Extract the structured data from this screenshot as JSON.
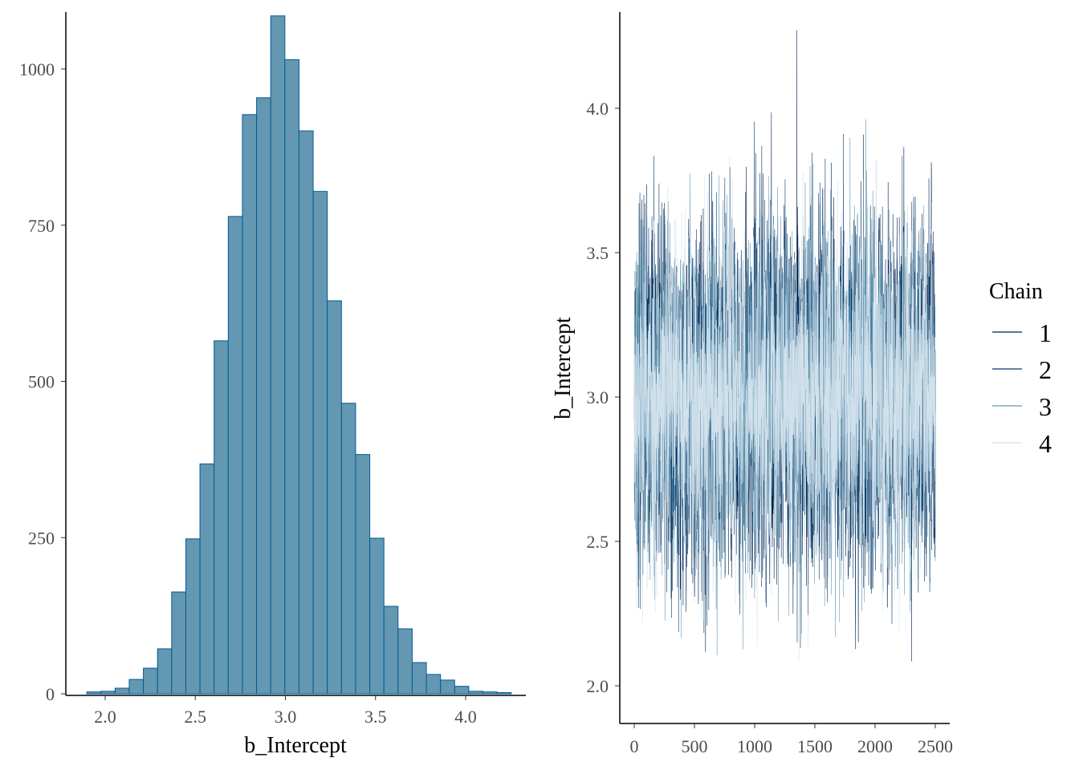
{
  "chart_data": [
    {
      "type": "bar",
      "title": "",
      "xlabel": "b_Intercept",
      "ylabel": "",
      "xlim": [
        1.82,
        4.36
      ],
      "ylim": [
        0,
        1100
      ],
      "x_ticks": [
        "2.0",
        "2.5",
        "3.0",
        "3.5",
        "4.0"
      ],
      "x_tick_values": [
        2.0,
        2.5,
        3.0,
        3.5,
        4.0
      ],
      "y_ticks": [
        "0",
        "250",
        "500",
        "750",
        "1000"
      ],
      "y_tick_values": [
        0,
        250,
        500,
        750,
        1000
      ],
      "bin_start": 1.898,
      "bin_width": 0.0785,
      "values": [
        3,
        4,
        9,
        23,
        41,
        72,
        163,
        248,
        368,
        565,
        764,
        927,
        954,
        1085,
        1015,
        901,
        804,
        629,
        465,
        383,
        249,
        140,
        104,
        50,
        31,
        22,
        12,
        4,
        3,
        2
      ],
      "fill": "#6497b1",
      "outline": "#005b96",
      "grid": false
    },
    {
      "type": "line",
      "title": "",
      "xlabel": "",
      "ylabel": "b_Intercept",
      "xlim": [
        -120,
        2620
      ],
      "ylim": [
        1.87,
        4.33
      ],
      "x_ticks": [
        "0",
        "500",
        "1000",
        "1500",
        "2000",
        "2500"
      ],
      "x_tick_values": [
        0,
        500,
        1000,
        1500,
        2000,
        2500
      ],
      "y_ticks": [
        "2.0",
        "2.5",
        "3.0",
        "3.5",
        "4.0"
      ],
      "y_tick_values": [
        2.0,
        2.5,
        3.0,
        3.5,
        4.0
      ],
      "iterations": 2500,
      "trace_mean": 3.0,
      "trace_sd": 0.28,
      "legend": {
        "title": "Chain",
        "position": "right",
        "entries": [
          "1",
          "2",
          "3",
          "4"
        ]
      },
      "series": [
        {
          "name": "1",
          "color": "#011f4b",
          "seed": 11
        },
        {
          "name": "2",
          "color": "#03396c",
          "seed": 23
        },
        {
          "name": "3",
          "color": "#6497b1",
          "seed": 37
        },
        {
          "name": "4",
          "color": "#d1e1ec",
          "seed": 53
        }
      ],
      "grid": false
    }
  ]
}
